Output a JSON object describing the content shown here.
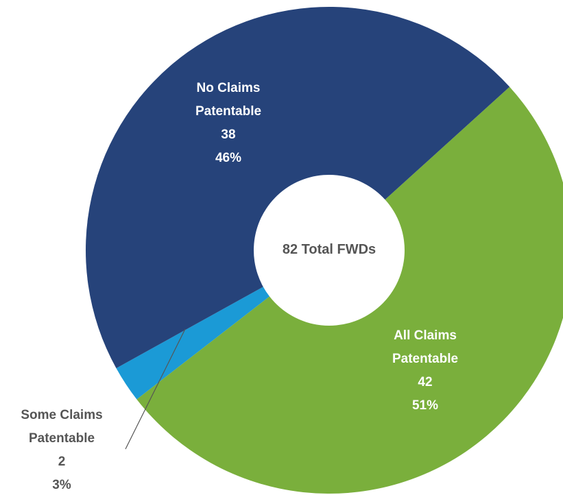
{
  "chart_data": {
    "type": "donut",
    "center_label": "82 Total FWDs",
    "categories": [
      "No Claims Patentable",
      "All Claims Patentable",
      "Some Claims Patentable"
    ],
    "values": [
      38,
      42,
      2
    ],
    "percentages": [
      46,
      51,
      3
    ],
    "percentage_labels": [
      "46%",
      "51%",
      "3%"
    ],
    "colors": [
      "#26437a",
      "#7aaf3c",
      "#1b9ad6"
    ]
  }
}
